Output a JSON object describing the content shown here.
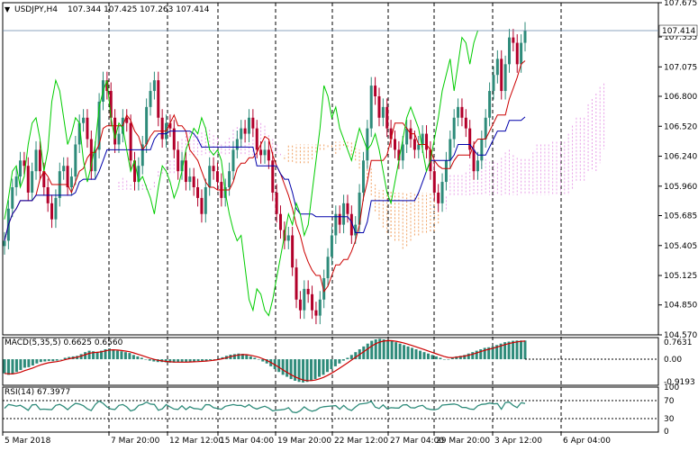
{
  "header": {
    "symbol_timeframe": "USDJPY,H4",
    "ohlc": "107.344 107.425 107.263 107.414"
  },
  "chart_data": [
    {
      "type": "candlestick",
      "title": "USDJPY,H4",
      "ylim": [
        104.57,
        107.675
      ],
      "y_ticks": [
        "107.675",
        "107.355",
        "107.075",
        "106.800",
        "106.520",
        "106.240",
        "105.960",
        "105.685",
        "105.405",
        "105.125",
        "104.850",
        "104.570"
      ],
      "y_tick_values": [
        107.675,
        107.355,
        107.075,
        106.8,
        106.52,
        106.24,
        105.96,
        105.685,
        105.405,
        105.125,
        104.85,
        104.57
      ],
      "current_price": 107.414,
      "current_price_label": "107.414",
      "x_ticks": [
        "5 Mar 2018",
        "7 Mar 20:00",
        "12 Mar 12:00",
        "15 Mar 04:00",
        "19 Mar 20:00",
        "22 Mar 12:00",
        "27 Mar 04:00",
        "29 Mar 20:00",
        "3 Apr 12:00",
        "6 Apr 04:00"
      ],
      "closes": [
        105.45,
        105.75,
        105.95,
        106.05,
        106.2,
        106.15,
        105.9,
        106.1,
        106.3,
        106.1,
        105.95,
        105.8,
        105.65,
        105.85,
        106.1,
        106.15,
        105.95,
        106.05,
        106.35,
        106.55,
        106.6,
        106.4,
        106.1,
        106.3,
        106.75,
        106.95,
        106.85,
        106.6,
        106.35,
        106.45,
        106.6,
        106.55,
        106.2,
        106.0,
        106.15,
        106.35,
        106.7,
        106.85,
        106.95,
        106.6,
        106.4,
        106.55,
        106.5,
        106.3,
        106.1,
        106.2,
        106.0,
        106.05,
        105.95,
        105.85,
        105.7,
        105.95,
        106.15,
        106.1,
        106.0,
        105.85,
        105.95,
        106.1,
        106.3,
        106.4,
        106.5,
        106.45,
        106.6,
        106.5,
        106.3,
        106.25,
        106.3,
        106.2,
        105.9,
        105.7,
        105.55,
        105.45,
        105.5,
        105.2,
        104.9,
        104.8,
        105.0,
        104.95,
        104.8,
        104.75,
        104.9,
        105.1,
        105.3,
        105.5,
        105.7,
        105.6,
        105.8,
        105.7,
        105.5,
        105.6,
        105.9,
        106.2,
        106.5,
        106.9,
        106.8,
        106.6,
        106.7,
        106.5,
        106.4,
        106.3,
        106.2,
        106.35,
        106.5,
        106.4,
        106.3,
        106.35,
        106.45,
        106.3,
        106.1,
        105.9,
        105.8,
        106.0,
        106.2,
        106.4,
        106.6,
        106.7,
        106.6,
        106.5,
        106.3,
        106.1,
        106.2,
        106.4,
        106.6,
        106.85,
        107.0,
        107.15,
        106.85,
        107.1,
        107.35,
        107.3,
        107.1,
        107.3,
        107.414
      ],
      "series": [
        {
          "name": "",
          "color": "#cc0000",
          "role": "tenkan-sen"
        },
        {
          "name": "",
          "color": "#0000aa",
          "role": "kijun-sen"
        },
        {
          "name": "",
          "color": "#00cc00",
          "role": "chikou span"
        }
      ],
      "colors": {
        "bull": "#2e8b7a",
        "bear": "#b2002a",
        "cloud_up": "#e8a0e8",
        "cloud_down": "#f0a060"
      }
    },
    {
      "type": "bar",
      "title": "MACD(5,35,5) 0.6625 0.6560",
      "y_ticks": [
        "0.7631",
        "0.00",
        "-0.9193"
      ],
      "ylim": [
        -0.9193,
        0.7631
      ],
      "values": [
        -0.5,
        -0.55,
        -0.52,
        -0.45,
        -0.38,
        -0.3,
        -0.28,
        -0.22,
        -0.15,
        -0.1,
        -0.08,
        -0.06,
        -0.07,
        -0.05,
        0.0,
        0.05,
        0.08,
        0.1,
        0.12,
        0.18,
        0.25,
        0.3,
        0.28,
        0.26,
        0.3,
        0.35,
        0.38,
        0.35,
        0.3,
        0.28,
        0.25,
        0.22,
        0.15,
        0.1,
        0.05,
        0.0,
        -0.05,
        -0.08,
        -0.1,
        -0.1,
        -0.11,
        -0.12,
        -0.12,
        -0.11,
        -0.1,
        -0.1,
        -0.09,
        -0.08,
        -0.07,
        -0.06,
        -0.05,
        -0.03,
        0.0,
        0.03,
        0.07,
        0.12,
        0.16,
        0.18,
        0.2,
        0.19,
        0.15,
        0.1,
        0.05,
        0.0,
        -0.08,
        -0.15,
        -0.25,
        -0.35,
        -0.45,
        -0.55,
        -0.62,
        -0.7,
        -0.76,
        -0.8,
        -0.82,
        -0.8,
        -0.75,
        -0.7,
        -0.62,
        -0.55,
        -0.45,
        -0.35,
        -0.25,
        -0.15,
        -0.05,
        0.05,
        0.15,
        0.25,
        0.35,
        0.45,
        0.55,
        0.65,
        0.7,
        0.72,
        0.7,
        0.68,
        0.65,
        0.6,
        0.55,
        0.5,
        0.45,
        0.4,
        0.35,
        0.3,
        0.25,
        0.2,
        0.15,
        0.1,
        0.05,
        0.0,
        0.0,
        0.05,
        0.1,
        0.12,
        0.15,
        0.2,
        0.25,
        0.3,
        0.35,
        0.4,
        0.42,
        0.45,
        0.5,
        0.55,
        0.6,
        0.62,
        0.65,
        0.66,
        0.66,
        0.66
      ],
      "signal_color": "#cc0000",
      "hist_color": "#2e8b7a"
    },
    {
      "type": "line",
      "title": "RSI(14) 67.3977",
      "y_ticks": [
        "100",
        "70",
        "30",
        "0"
      ],
      "ylim": [
        0,
        100
      ],
      "levels": [
        70,
        30
      ],
      "color": "#2e8b7a"
    }
  ]
}
